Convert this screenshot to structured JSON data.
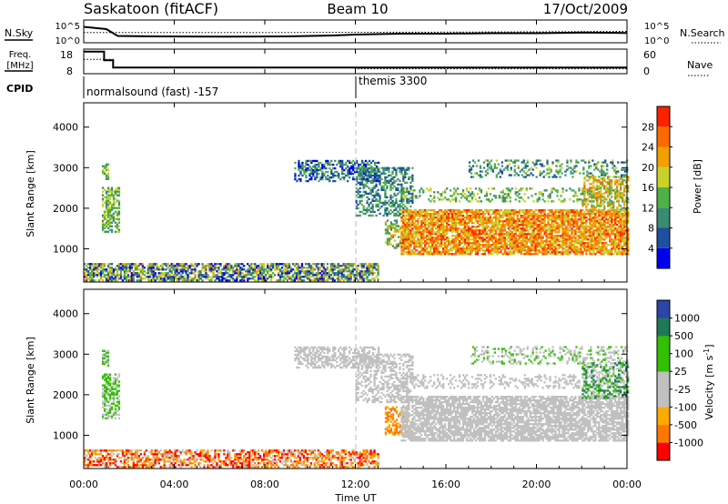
{
  "header": {
    "station": "Saskatoon (fitACF)",
    "beam": "Beam 10",
    "date": "17/Oct/2009"
  },
  "labels": {
    "nsky": "N.Sky",
    "nsearch": "N.Search",
    "freq_a": "Freq.",
    "freq_b": "[MHz]",
    "nave": "Nave",
    "cpid": "CPID",
    "cpid_1": "normalsound (fast) -157",
    "cpid_2": "themis 3300",
    "noise_top": "10^5",
    "noise_bot": "10^0",
    "freq_top": "18",
    "freq_bot": "8",
    "nave_top": "60",
    "nave_bot": "0"
  },
  "x_axis": {
    "label": "Time UT",
    "ticks": [
      "00:00",
      "04:00",
      "08:00",
      "12:00",
      "16:00",
      "20:00",
      "00:00"
    ]
  },
  "colors": {
    "power": [
      "#0000ee",
      "#1f4fa0",
      "#3a8a74",
      "#4fb048",
      "#c8d228",
      "#f0a000",
      "#ff6a00",
      "#ff2000"
    ],
    "velocity": [
      "#ff0000",
      "#ff7700",
      "#ffaa00",
      "#c0c0c0",
      "#c0c0c0",
      "#33c000",
      "#1e7a56",
      "#2a46a8"
    ]
  },
  "chart_data": [
    {
      "type": "line",
      "title": "N.Sky / N.Search",
      "ylabel": "N.Sky",
      "y2label": "N.Search",
      "yticks": [
        "10^5",
        "10^0"
      ],
      "y2ticks": [
        "10^5",
        "10^0"
      ],
      "series": [
        {
          "name": "N.Sky",
          "x": [
            0.0,
            1.0,
            1.5,
            3,
            6,
            9,
            10,
            11,
            12,
            13,
            14,
            16,
            18,
            20,
            22,
            24
          ],
          "values": [
            0.7,
            0.6,
            0.3,
            0.28,
            0.27,
            0.28,
            0.3,
            0.32,
            0.36,
            0.38,
            0.4,
            0.4,
            0.42,
            0.42,
            0.45,
            0.43
          ]
        },
        {
          "name": "N.Search",
          "x": [
            0,
            4,
            8,
            12,
            16,
            20,
            24
          ],
          "values": [
            0.45,
            0.45,
            0.45,
            0.46,
            0.47,
            0.48,
            0.5
          ]
        }
      ]
    },
    {
      "type": "line",
      "ylabel": "Freq. [MHz]",
      "y2label": "Nave",
      "ylim": [
        8,
        18
      ],
      "y2lim": [
        0,
        60
      ],
      "series": [
        {
          "name": "Freq.",
          "x": [
            0.0,
            0.9,
            0.9,
            1.3,
            1.3,
            24
          ],
          "values": [
            17,
            17,
            13.5,
            13.5,
            10.5,
            10.5
          ]
        },
        {
          "name": "Nave",
          "x": [
            0.0,
            1.3,
            1.3,
            12,
            12,
            24
          ],
          "values": [
            35,
            35,
            15,
            15,
            12,
            12
          ]
        }
      ]
    },
    {
      "type": "heatmap",
      "title": "Power",
      "ylabel": "Slant Range [km]",
      "xlabel": "",
      "ylim": [
        180,
        4600
      ],
      "xlim": [
        0,
        24
      ],
      "yticks": [
        1000,
        2000,
        3000,
        4000
      ],
      "colorbar": {
        "label": "Power [dB]",
        "ticks": [
          "4",
          "8",
          "12",
          "16",
          "20",
          "24",
          "28"
        ],
        "range": [
          0,
          32
        ]
      },
      "regions": [
        {
          "t0": 0.0,
          "t1": 13.0,
          "r0": 200,
          "r1": 620,
          "v0": 0,
          "v1": 24,
          "density": 0.7
        },
        {
          "t0": 0.8,
          "t1": 1.6,
          "r0": 1400,
          "r1": 2500,
          "v0": 8,
          "v1": 20,
          "density": 0.65
        },
        {
          "t0": 0.8,
          "t1": 1.1,
          "r0": 2700,
          "r1": 3100,
          "v0": 8,
          "v1": 20,
          "density": 0.6
        },
        {
          "t0": 9.3,
          "t1": 13.0,
          "r0": 2650,
          "r1": 3150,
          "v0": 0,
          "v1": 16,
          "density": 0.55
        },
        {
          "t0": 12.0,
          "t1": 14.5,
          "r0": 1800,
          "r1": 3000,
          "v0": 4,
          "v1": 16,
          "density": 0.45
        },
        {
          "t0": 13.3,
          "t1": 14.3,
          "r0": 1000,
          "r1": 1700,
          "v0": 8,
          "v1": 24,
          "density": 0.5
        },
        {
          "t0": 14.0,
          "t1": 24.0,
          "r0": 850,
          "r1": 1950,
          "v0": 16,
          "v1": 30,
          "density": 0.8
        },
        {
          "t0": 14.0,
          "t1": 24.0,
          "r0": 2150,
          "r1": 2500,
          "v0": 8,
          "v1": 20,
          "density": 0.3
        },
        {
          "t0": 17.0,
          "t1": 24.0,
          "r0": 2750,
          "r1": 3200,
          "v0": 4,
          "v1": 18,
          "density": 0.3
        },
        {
          "t0": 22.0,
          "t1": 24.0,
          "r0": 1900,
          "r1": 2800,
          "v0": 12,
          "v1": 26,
          "density": 0.55
        }
      ]
    },
    {
      "type": "heatmap",
      "title": "Velocity",
      "ylabel": "Slant Range [km]",
      "xlabel": "Time UT",
      "ylim": [
        180,
        4600
      ],
      "xlim": [
        0,
        24
      ],
      "yticks": [
        1000,
        2000,
        3000,
        4000
      ],
      "colorbar": {
        "label": "Velocity [m s^-1]",
        "ticks": [
          "1000",
          "500",
          "100",
          "25",
          "-25",
          "-100",
          "-500",
          "-1000"
        ]
      },
      "regions": [
        {
          "t0": 0.0,
          "t1": 13.0,
          "r0": 200,
          "r1": 620,
          "v0": 0,
          "v1": 4,
          "density": 0.6
        },
        {
          "t0": 0.8,
          "t1": 1.6,
          "r0": 1400,
          "r1": 2500,
          "v0": 4,
          "v1": 6,
          "density": 0.65
        },
        {
          "t0": 0.8,
          "t1": 1.1,
          "r0": 2700,
          "r1": 3100,
          "v0": 4,
          "v1": 6,
          "density": 0.6
        },
        {
          "t0": 9.3,
          "t1": 13.0,
          "r0": 2650,
          "r1": 3150,
          "v0": 3,
          "v1": 5,
          "density": 0.55
        },
        {
          "t0": 12.0,
          "t1": 14.5,
          "r0": 1800,
          "r1": 3000,
          "v0": 3,
          "v1": 5,
          "density": 0.45
        },
        {
          "t0": 13.3,
          "t1": 14.3,
          "r0": 1000,
          "r1": 1700,
          "v0": 1,
          "v1": 3,
          "density": 0.5
        },
        {
          "t0": 14.0,
          "t1": 24.0,
          "r0": 850,
          "r1": 1950,
          "v0": 3,
          "v1": 5,
          "density": 0.75
        },
        {
          "t0": 14.0,
          "t1": 24.0,
          "r0": 2150,
          "r1": 2500,
          "v0": 3,
          "v1": 5,
          "density": 0.3
        },
        {
          "t0": 17.0,
          "t1": 24.0,
          "r0": 2750,
          "r1": 3200,
          "v0": 3,
          "v1": 6,
          "density": 0.3
        },
        {
          "t0": 22.0,
          "t1": 24.0,
          "r0": 1900,
          "r1": 2800,
          "v0": 4,
          "v1": 7,
          "density": 0.5
        }
      ]
    }
  ]
}
